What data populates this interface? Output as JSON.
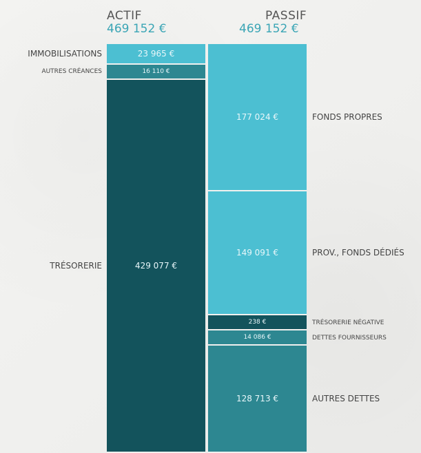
{
  "actif": {
    "title": "ACTIF",
    "total": "469 152 €",
    "segments": [
      {
        "label": "IMMOBILISATIONS",
        "value": 23965,
        "value_text": "23 965 €",
        "color": "#4cbfd2"
      },
      {
        "label": "AUTRES CRÉANCES",
        "value": 16110,
        "value_text": "16 110 €",
        "color": "#2d8791"
      },
      {
        "label": "TRÉSORERIE",
        "value": 429077,
        "value_text": "429 077 €",
        "color": "#13535c"
      }
    ]
  },
  "passif": {
    "title": "PASSIF",
    "total": "469 152 €",
    "segments": [
      {
        "label": "FONDS PROPRES",
        "value": 177024,
        "value_text": "177 024 €",
        "color": "#4cbfd2"
      },
      {
        "label": "PROV., FONDS DÉDIÉS",
        "value": 149091,
        "value_text": "149 091 €",
        "color": "#4cbfd2"
      },
      {
        "label": "TRÉSORERIE NÉGATIVE",
        "value": 238,
        "value_text": "238 €",
        "color": "#13535c"
      },
      {
        "label": "DETTES FOURNISSEURS",
        "value": 14086,
        "value_text": "14 086 €",
        "color": "#2d8791"
      },
      {
        "label": "AUTRES DETTES",
        "value": 128713,
        "value_text": "128 713 €",
        "color": "#2d8791"
      }
    ]
  },
  "chart_data": {
    "type": "bar",
    "categories": [
      "ACTIF",
      "PASSIF"
    ],
    "series": [
      {
        "name": "IMMOBILISATIONS",
        "values": [
          23965,
          null
        ]
      },
      {
        "name": "AUTRES CRÉANCES",
        "values": [
          16110,
          null
        ]
      },
      {
        "name": "TRÉSORERIE",
        "values": [
          429077,
          null
        ]
      },
      {
        "name": "FONDS PROPRES",
        "values": [
          null,
          177024
        ]
      },
      {
        "name": "PROV., FONDS DÉDIÉS",
        "values": [
          null,
          149091
        ]
      },
      {
        "name": "TRÉSORERIE NÉGATIVE",
        "values": [
          null,
          238
        ]
      },
      {
        "name": "DETTES FOURNISSEURS",
        "values": [
          null,
          14086
        ]
      },
      {
        "name": "AUTRES DETTES",
        "values": [
          null,
          128713
        ]
      }
    ],
    "stacked": true,
    "totals": [
      469152,
      469152
    ]
  }
}
